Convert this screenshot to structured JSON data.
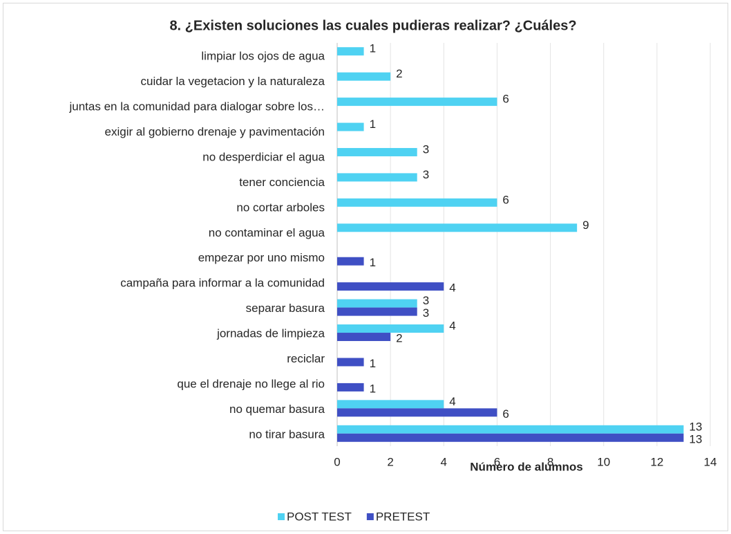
{
  "chart_data": {
    "type": "bar",
    "orientation": "horizontal",
    "title": "8. ¿Existen soluciones las cuales pudieras realizar? ¿Cuáles?",
    "x_label": "Número de alumnos",
    "categories": [
      "limpiar los ojos de agua",
      "cuidar la vegetacion y la naturaleza",
      "juntas en la comunidad para dialogar sobre los…",
      "exigir al gobierno drenaje y pavimentación",
      "no desperdiciar el agua",
      "tener conciencia",
      "no cortar arboles",
      "no contaminar el agua",
      "empezar por uno mismo",
      "campaña para informar a la comunidad",
      "separar basura",
      "jornadas de limpieza",
      "reciclar",
      "que el drenaje no llege al rio",
      "no quemar basura",
      "no tirar basura"
    ],
    "series": [
      {
        "name": "POST TEST",
        "color": "#4fd2f2",
        "values": [
          1,
          2,
          6,
          1,
          3,
          3,
          6,
          9,
          null,
          null,
          3,
          4,
          null,
          null,
          4,
          13
        ]
      },
      {
        "name": "PRETEST",
        "color": "#3f4fc4",
        "values": [
          null,
          null,
          null,
          null,
          null,
          null,
          null,
          null,
          1,
          4,
          3,
          2,
          1,
          1,
          6,
          13
        ]
      }
    ],
    "xlim": [
      0,
      14
    ],
    "xticks": [
      0,
      2,
      4,
      6,
      8,
      10,
      12,
      14
    ],
    "grid": true,
    "legend": "bottom"
  }
}
